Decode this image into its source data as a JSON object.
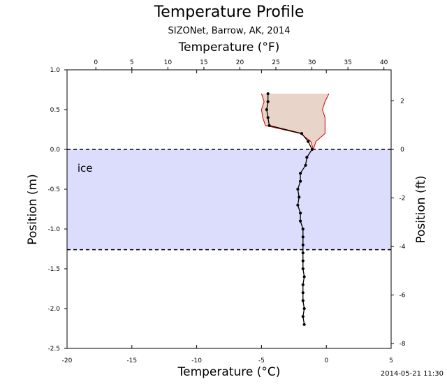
{
  "chart_data": {
    "type": "line",
    "title": "Temperature Profile",
    "subtitle": "SIZONet, Barrow, AK, 2014",
    "xlabel": "Temperature (°C)",
    "x2label": "Temperature (°F)",
    "ylabel": "Position (m)",
    "y2label": "Position (ft)",
    "xlim": [
      -20,
      5
    ],
    "ylim": [
      -2.5,
      1.0
    ],
    "x2lim_F": [
      -4,
      41
    ],
    "y2lim_ft": [
      -8.2,
      3.28
    ],
    "xticks": [
      "-20",
      "-15",
      "-10",
      "-5",
      "0",
      "5"
    ],
    "x2ticks": [
      "0",
      "5",
      "10",
      "15",
      "20",
      "25",
      "30",
      "35",
      "40"
    ],
    "yticks": [
      "1.0",
      "0.5",
      "0.0",
      "-0.5",
      "-1.0",
      "-1.5",
      "-2.0",
      "-2.5"
    ],
    "y2ticks": [
      "2",
      "0",
      "-2",
      "-4",
      "-6",
      "-8"
    ],
    "grid": false,
    "ice_label": "ice",
    "ice_layer": {
      "top": 0.0,
      "bottom": -1.26,
      "color": "#dcdcfc"
    },
    "range_band": {
      "color": "#e8d4c8",
      "line_color": "#cc0000",
      "y": [
        0.7,
        0.6,
        0.5,
        0.4,
        0.3,
        0.2,
        0.1,
        0.0
      ],
      "min": [
        -5.0,
        -4.8,
        -5.0,
        -4.9,
        -4.7,
        -2.0,
        -1.2,
        -1.0
      ],
      "max": [
        0.2,
        -0.1,
        -0.3,
        -0.1,
        -0.1,
        -0.1,
        -0.8,
        -1.0
      ]
    },
    "series": [
      {
        "color": "#000000",
        "y": [
          0.7,
          0.6,
          0.5,
          0.4,
          0.3,
          0.2,
          0.1,
          0.0,
          -0.1,
          -0.2,
          -0.3,
          -0.4,
          -0.5,
          -0.6,
          -0.7,
          -0.8,
          -0.9,
          -1.0,
          -1.1,
          -1.2,
          -1.3,
          -1.4,
          -1.5,
          -1.6,
          -1.7,
          -1.8,
          -1.9,
          -2.0,
          -2.1,
          -2.2
        ],
        "x": [
          -4.5,
          -4.5,
          -4.6,
          -4.5,
          -4.4,
          -1.9,
          -1.4,
          -1.1,
          -1.5,
          -1.6,
          -2.0,
          -2.0,
          -2.2,
          -2.1,
          -2.2,
          -2.0,
          -2.0,
          -1.8,
          -1.8,
          -1.8,
          -1.8,
          -1.8,
          -1.8,
          -1.7,
          -1.8,
          -1.8,
          -1.8,
          -1.7,
          -1.8,
          -1.7
        ]
      }
    ]
  },
  "timestamp": "2014-05-21 11:30"
}
